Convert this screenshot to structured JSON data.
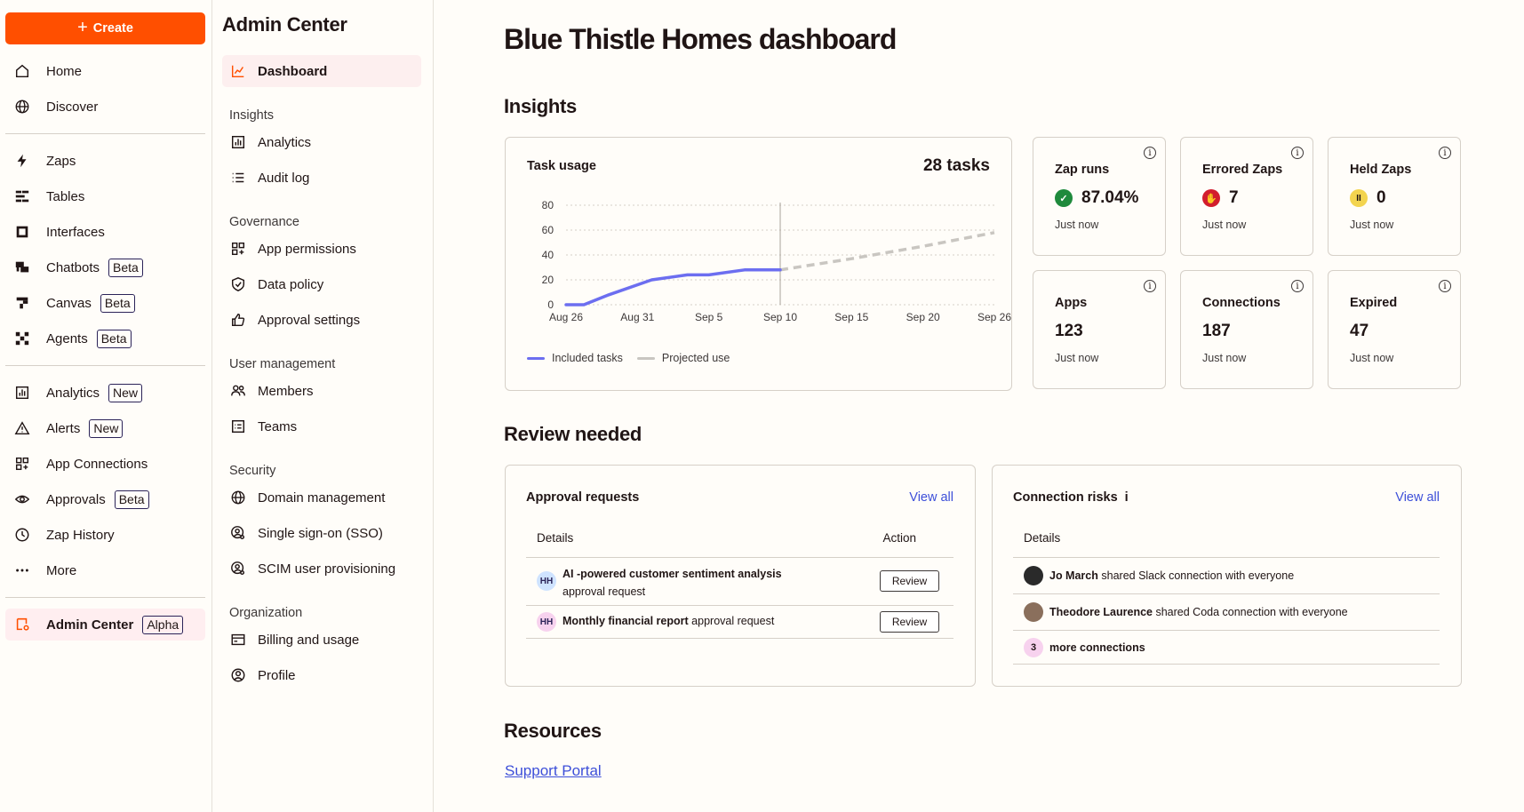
{
  "nav": {
    "create_label": "Create",
    "items": [
      {
        "label": "Home",
        "icon": "home-icon"
      },
      {
        "label": "Discover",
        "icon": "globe-icon"
      },
      {
        "label": "Zaps",
        "icon": "bolt-icon"
      },
      {
        "label": "Tables",
        "icon": "tables-icon"
      },
      {
        "label": "Interfaces",
        "icon": "interfaces-icon"
      },
      {
        "label": "Chatbots",
        "icon": "chatbots-icon",
        "badge": "Beta"
      },
      {
        "label": "Canvas",
        "icon": "canvas-icon",
        "badge": "Beta"
      },
      {
        "label": "Agents",
        "icon": "agents-icon",
        "badge": "Beta"
      },
      {
        "label": "Analytics",
        "icon": "analytics-icon",
        "badge": "New"
      },
      {
        "label": "Alerts",
        "icon": "alert-icon",
        "badge": "New"
      },
      {
        "label": "App Connections",
        "icon": "app-connections-icon"
      },
      {
        "label": "Approvals",
        "icon": "eye-icon",
        "badge": "Beta"
      },
      {
        "label": "Zap History",
        "icon": "clock-icon"
      },
      {
        "label": "More",
        "icon": "more-icon"
      },
      {
        "label": "Admin Center",
        "icon": "admin-center-icon",
        "badge": "Alpha"
      }
    ]
  },
  "admin": {
    "title": "Admin Center",
    "dashboard": "Dashboard",
    "sections": {
      "insights": "Insights",
      "governance": "Governance",
      "user_management": "User management",
      "security": "Security",
      "organization": "Organization"
    },
    "items": {
      "analytics": "Analytics",
      "audit_log": "Audit log",
      "app_permissions": "App permissions",
      "data_policy": "Data policy",
      "approval_settings": "Approval settings",
      "members": "Members",
      "teams": "Teams",
      "domain_management": "Domain management",
      "sso": "Single sign-on (SSO)",
      "scim": "SCIM user provisioning",
      "billing": "Billing and usage",
      "profile": "Profile"
    }
  },
  "main": {
    "title": "Blue Thistle Homes dashboard",
    "insights_title": "Insights",
    "task_usage": {
      "title": "Task usage",
      "count": "28 tasks",
      "legend_included": "Included tasks",
      "legend_projected": "Projected use"
    },
    "stats": [
      {
        "title": "Zap runs",
        "value": "87.04%",
        "time": "Just now",
        "status": "success"
      },
      {
        "title": "Errored Zaps",
        "value": "7",
        "time": "Just now",
        "status": "error"
      },
      {
        "title": "Held Zaps",
        "value": "0",
        "time": "Just now",
        "status": "held"
      },
      {
        "title": "Apps",
        "value": "123",
        "time": "Just now"
      },
      {
        "title": "Connections",
        "value": "187",
        "time": "Just now"
      },
      {
        "title": "Expired",
        "value": "47",
        "time": "Just now"
      }
    ],
    "review_title": "Review needed",
    "approvals": {
      "title": "Approval requests",
      "view_all": "View all",
      "col_details": "Details",
      "col_action": "Action",
      "rows": [
        {
          "initials": "HH",
          "bold": "AI -powered customer sentiment analysis",
          "rest": "approval request",
          "action": "Review"
        },
        {
          "initials": "HH",
          "bold": "Monthly financial report",
          "rest": "approval request",
          "action": "Review"
        }
      ]
    },
    "risks": {
      "title": "Connection risks",
      "view_all": "View all",
      "col_details": "Details",
      "rows": [
        {
          "bold": "Jo March",
          "rest": "shared Slack connection with everyone"
        },
        {
          "bold": "Theodore Laurence",
          "rest": "shared Coda connection with everyone"
        }
      ],
      "more_count": "3",
      "more_label": "more connections"
    },
    "resources_title": "Resources",
    "support_link": "Support Portal"
  },
  "colors": {
    "brand": "#ff4f00",
    "included": "#6c6ef0",
    "projected": "#c9c6c1",
    "success": "#1f8a3c",
    "error": "#d21d2d",
    "held": "#f3d44f",
    "link": "#3d4fd9"
  },
  "chart_data": {
    "type": "line",
    "x": [
      "Aug 26",
      "Aug 31",
      "Sep 5",
      "Sep 10",
      "Sep 15",
      "Sep 20",
      "Sep 26"
    ],
    "ylim": [
      0,
      80
    ],
    "yticks": [
      0,
      20,
      40,
      60,
      80
    ],
    "series": [
      {
        "name": "Included tasks",
        "points": [
          [
            0,
            0
          ],
          [
            0.25,
            0
          ],
          [
            0.6,
            8
          ],
          [
            1.2,
            20
          ],
          [
            1.7,
            24
          ],
          [
            2.0,
            24
          ],
          [
            2.5,
            28
          ],
          [
            3.0,
            28
          ]
        ]
      },
      {
        "name": "Projected use",
        "points": [
          [
            3.0,
            28
          ],
          [
            4.0,
            37
          ],
          [
            5.0,
            47
          ],
          [
            6.0,
            58
          ]
        ]
      }
    ]
  }
}
